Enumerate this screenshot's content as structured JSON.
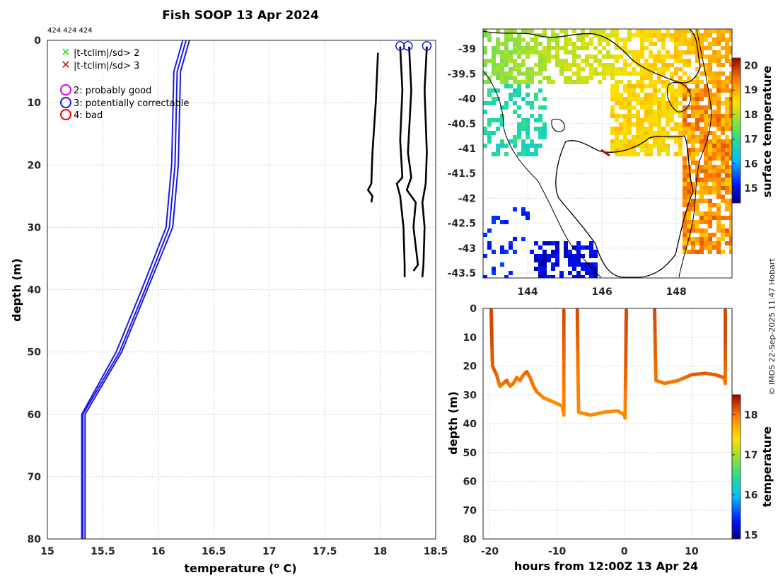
{
  "title": "Fish SOOP 13 Apr 2024",
  "profile_ids": "424 424 424",
  "copyright": "© IMOS 22-Sep-2025 11:47 Hobart",
  "legend": {
    "x_green": "|t-tclim|/sd> 2",
    "x_red": "|t-tclim|/sd> 3",
    "q2": "2: probably good",
    "q3": "3: potentially correctable",
    "q4": "4: bad",
    "colors": {
      "green": "#22dd22",
      "red": "#e00000",
      "magenta": "#e000e0",
      "blue": "#1a1adf",
      "red_circle": "#ee0000"
    }
  },
  "chart_data": [
    {
      "type": "line",
      "name": "profile",
      "xlabel": "temperature (o C)",
      "ylabel": "depth (m)",
      "xlim": [
        15,
        18.5
      ],
      "ylim": [
        0,
        80
      ],
      "xticks": [
        15,
        15.5,
        16,
        16.5,
        17,
        17.5,
        18,
        18.5
      ],
      "yticks": [
        0,
        10,
        20,
        30,
        40,
        50,
        60,
        70,
        80
      ],
      "grid": true,
      "series": [
        {
          "name": "climatology",
          "color": "#1a1adf",
          "points": [
            [
              16.25,
              0
            ],
            [
              16.17,
              5
            ],
            [
              16.15,
              20
            ],
            [
              16.1,
              30
            ],
            [
              15.88,
              40
            ],
            [
              15.65,
              50
            ],
            [
              15.32,
              60
            ],
            [
              15.32,
              80
            ]
          ]
        },
        {
          "name": "climatology-2",
          "color": "#1a1adf",
          "points": [
            [
              16.28,
              0
            ],
            [
              16.2,
              5
            ],
            [
              16.18,
              20
            ],
            [
              16.13,
              30
            ],
            [
              15.9,
              40
            ],
            [
              15.67,
              50
            ],
            [
              15.34,
              60
            ],
            [
              15.34,
              80
            ]
          ]
        },
        {
          "name": "climatology-3",
          "color": "#1a1adf",
          "points": [
            [
              16.22,
              0
            ],
            [
              16.14,
              5
            ],
            [
              16.12,
              20
            ],
            [
              16.07,
              30
            ],
            [
              15.85,
              40
            ],
            [
              15.62,
              50
            ],
            [
              15.31,
              60
            ],
            [
              15.31,
              80
            ]
          ]
        }
      ],
      "observed": [
        {
          "name": "trace-1",
          "color": "#000000",
          "points": [
            [
              17.98,
              2
            ],
            [
              17.96,
              10
            ],
            [
              17.93,
              18
            ],
            [
              17.92,
              23
            ],
            [
              17.89,
              24
            ],
            [
              17.93,
              25
            ],
            [
              17.92,
              26
            ]
          ]
        },
        {
          "name": "trace-2",
          "color": "#000000",
          "points": [
            [
              18.18,
              1
            ],
            [
              18.2,
              8
            ],
            [
              18.18,
              16
            ],
            [
              18.2,
              22
            ],
            [
              18.15,
              23
            ],
            [
              18.18,
              25
            ],
            [
              18.21,
              30
            ],
            [
              18.22,
              36
            ],
            [
              18.22,
              38
            ]
          ]
        },
        {
          "name": "trace-3",
          "color": "#000000",
          "points": [
            [
              18.26,
              1
            ],
            [
              18.28,
              8
            ],
            [
              18.25,
              18
            ],
            [
              18.28,
              22
            ],
            [
              18.24,
              24
            ],
            [
              18.32,
              26
            ],
            [
              18.3,
              30
            ],
            [
              18.34,
              36
            ],
            [
              18.3,
              37
            ]
          ]
        },
        {
          "name": "trace-4",
          "color": "#000000",
          "points": [
            [
              18.42,
              1
            ],
            [
              18.4,
              8
            ],
            [
              18.42,
              18
            ],
            [
              18.41,
              23
            ],
            [
              18.38,
              26
            ],
            [
              18.4,
              30
            ],
            [
              18.39,
              36
            ],
            [
              18.38,
              38
            ]
          ]
        }
      ],
      "flag_circles": [
        [
          18.18,
          0.9
        ],
        [
          18.25,
          0.9
        ],
        [
          18.42,
          0.9
        ]
      ]
    },
    {
      "type": "heatmap",
      "name": "sst-map",
      "xticks": [
        "144",
        "146",
        "148"
      ],
      "yticks": [
        "-39",
        "-39.5",
        "-40",
        "-40.5",
        "-41",
        "-41.5",
        "-42",
        "-42.5",
        "-43",
        "-43.5"
      ],
      "colorbar_label": "surface temperature",
      "colorbar_ticks": [
        "20",
        "19",
        "18",
        "17",
        "16",
        "15"
      ],
      "clim": [
        14.4,
        20.3
      ],
      "lonlim": [
        142.8,
        149.5
      ],
      "latlim": [
        -43.6,
        -38.6
      ]
    },
    {
      "type": "scatter",
      "name": "depth-time",
      "xlabel": "hours from 12:00Z 13 Apr 24",
      "ylabel": "depth (m)",
      "xlim": [
        -21,
        16
      ],
      "ylim": [
        0,
        80
      ],
      "xticks": [
        "-20",
        "-10",
        "0",
        "10"
      ],
      "yticks": [
        "0",
        "10",
        "20",
        "30",
        "40",
        "50",
        "60",
        "70",
        "80"
      ],
      "colorbar_label": "temperature",
      "colorbar_ticks": [
        "18",
        "17",
        "16",
        "15"
      ],
      "clim": [
        14.9,
        18.5
      ],
      "segments": [
        {
          "points": [
            [
              -19.8,
              0,
              18.2
            ],
            [
              -19.7,
              10,
              18.2
            ],
            [
              -19.6,
              20,
              18.1
            ],
            [
              -19,
              23,
              18.1
            ],
            [
              -18.5,
              27,
              18.0
            ],
            [
              -18,
              26,
              18.0
            ],
            [
              -17.5,
              25,
              18.1
            ],
            [
              -17,
              27,
              18.0
            ],
            [
              -16.5,
              26,
              18.0
            ],
            [
              -16,
              24,
              18.0
            ],
            [
              -15.5,
              25,
              18.0
            ],
            [
              -15,
              23,
              18.0
            ],
            [
              -14.5,
              22,
              18.1
            ],
            [
              -14,
              24,
              18.0
            ],
            [
              -13.5,
              27,
              18.0
            ],
            [
              -13,
              29,
              18.0
            ],
            [
              -12,
              31,
              17.9
            ],
            [
              -11,
              32,
              17.9
            ],
            [
              -10,
              33,
              17.9
            ],
            [
              -9.2,
              34,
              17.9
            ],
            [
              -9,
              37,
              17.9
            ],
            [
              -9,
              25,
              18.0
            ],
            [
              -9,
              0,
              18.2
            ]
          ]
        },
        {
          "points": [
            [
              -7,
              0,
              18.2
            ],
            [
              -6.9,
              20,
              18.0
            ],
            [
              -6.8,
              36,
              17.9
            ],
            [
              -5,
              37,
              17.9
            ],
            [
              -3,
              36,
              17.9
            ],
            [
              -1,
              35.5,
              17.9
            ],
            [
              0,
              37,
              17.9
            ],
            [
              0.1,
              38,
              17.9
            ],
            [
              0.2,
              20,
              18.1
            ],
            [
              0.3,
              0,
              18.2
            ]
          ]
        },
        {
          "points": [
            [
              4.5,
              0,
              18.2
            ],
            [
              4.6,
              15,
              18.1
            ],
            [
              4.7,
              25,
              18.0
            ],
            [
              6,
              26,
              18.0
            ],
            [
              8,
              25,
              18.0
            ],
            [
              10,
              23,
              18.1
            ],
            [
              12,
              22.5,
              18.1
            ],
            [
              13.5,
              23,
              18.1
            ],
            [
              14.8,
              24,
              18.1
            ],
            [
              15,
              26,
              18.0
            ],
            [
              15,
              10,
              18.2
            ],
            [
              15,
              0,
              18.2
            ]
          ]
        }
      ]
    }
  ]
}
